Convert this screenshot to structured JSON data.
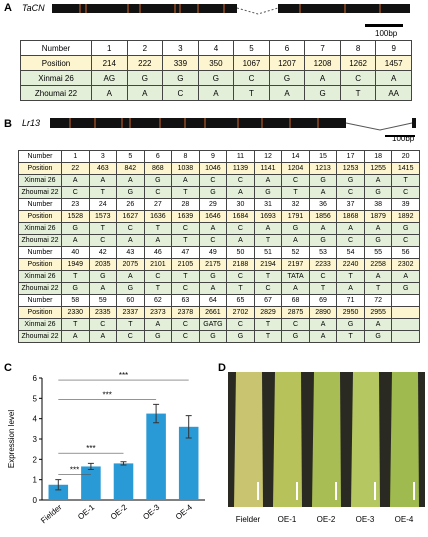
{
  "panel_a": {
    "label": "A",
    "gene": "TaCN",
    "scale": "100bp",
    "rows": [
      [
        "Number",
        1,
        2,
        3,
        4,
        5,
        6,
        7,
        8,
        9
      ],
      [
        "Position",
        214,
        222,
        339,
        350,
        1067,
        1207,
        1208,
        1262,
        1457
      ],
      [
        "Xinmai 26",
        "AG",
        "G",
        "G",
        "G",
        "C",
        "G",
        "A",
        "C",
        "A"
      ],
      [
        "Zhoumai 22",
        "A",
        "A",
        "C",
        "A",
        "T",
        "A",
        "G",
        "T",
        "AA"
      ]
    ]
  },
  "panel_b": {
    "label": "B",
    "gene": "Lr13",
    "scale": "100bp",
    "blocks": [
      [
        [
          "Number",
          1,
          3,
          5,
          6,
          8,
          9,
          11,
          12,
          14,
          15,
          17,
          18,
          20
        ],
        [
          "Position",
          22,
          463,
          842,
          868,
          1038,
          1046,
          1139,
          1141,
          1204,
          1213,
          1253,
          1255,
          1415
        ],
        [
          "Xinmai 26",
          "A",
          "A",
          "A",
          "G",
          "A",
          "C",
          "C",
          "A",
          "C",
          "G",
          "G",
          "A",
          "T"
        ],
        [
          "Zhoumai 22",
          "C",
          "T",
          "G",
          "C",
          "T",
          "G",
          "A",
          "G",
          "T",
          "A",
          "C",
          "G",
          "C"
        ]
      ],
      [
        [
          "Number",
          23,
          24,
          26,
          27,
          28,
          29,
          30,
          31,
          32,
          36,
          37,
          38,
          39
        ],
        [
          "Position",
          1528,
          1573,
          1627,
          1636,
          1639,
          1646,
          1684,
          1693,
          1791,
          1856,
          1868,
          1879,
          1892
        ],
        [
          "Xinmai 26",
          "G",
          "T",
          "C",
          "T",
          "C",
          "A",
          "C",
          "A",
          "G",
          "A",
          "A",
          "A",
          "G"
        ],
        [
          "Zhoumai 22",
          "A",
          "C",
          "A",
          "A",
          "T",
          "C",
          "A",
          "T",
          "A",
          "G",
          "C",
          "G",
          "C"
        ]
      ],
      [
        [
          "Number",
          40,
          42,
          43,
          46,
          47,
          49,
          50,
          51,
          52,
          53,
          54,
          55,
          56
        ],
        [
          "Position",
          1949,
          2035,
          2075,
          2101,
          2105,
          2175,
          2188,
          2194,
          2197,
          2233,
          2240,
          2258,
          2302
        ],
        [
          "Xinmai 26",
          "T",
          "G",
          "A",
          "C",
          "T",
          "G",
          "C",
          "T",
          "TATA",
          "C",
          "T",
          "A",
          "A"
        ],
        [
          "Zhoumai 22",
          "G",
          "A",
          "G",
          "T",
          "C",
          "A",
          "T",
          "C",
          "A",
          "T",
          "A",
          "T",
          "G"
        ]
      ],
      [
        [
          "Number",
          58,
          59,
          60,
          62,
          63,
          64,
          65,
          67,
          68,
          69,
          71,
          72
        ],
        [
          "Position",
          2330,
          2335,
          2337,
          2373,
          2378,
          2661,
          2702,
          2829,
          2875,
          2890,
          2950,
          2955
        ],
        [
          "Xinmai 26",
          "T",
          "C",
          "T",
          "A",
          "C",
          "GATG",
          "C",
          "T",
          "C",
          "A",
          "G",
          "A"
        ],
        [
          "Zhoumai 22",
          "A",
          "A",
          "C",
          "G",
          "C",
          "G",
          "G",
          "T",
          "G",
          "A",
          "T",
          "G"
        ]
      ]
    ]
  },
  "chart_data": {
    "type": "bar",
    "panel_label": "C",
    "ylabel": "Expression level",
    "categories": [
      "Fielder",
      "OE-1",
      "OE-2",
      "OE-3",
      "OE-4"
    ],
    "values": [
      0.75,
      1.65,
      1.8,
      4.25,
      3.6
    ],
    "errors": [
      0.25,
      0.15,
      0.08,
      0.45,
      0.55
    ],
    "color": "#2a9ad6",
    "ylim": [
      0,
      6
    ],
    "yticks": [
      0,
      1,
      2,
      3,
      4,
      5,
      6
    ],
    "annotations": [
      "***",
      "***",
      "***",
      "***"
    ]
  },
  "panel_d": {
    "label": "D",
    "samples": [
      "Fielder",
      "OE-1",
      "OE-2",
      "OE-3",
      "OE-4"
    ]
  }
}
